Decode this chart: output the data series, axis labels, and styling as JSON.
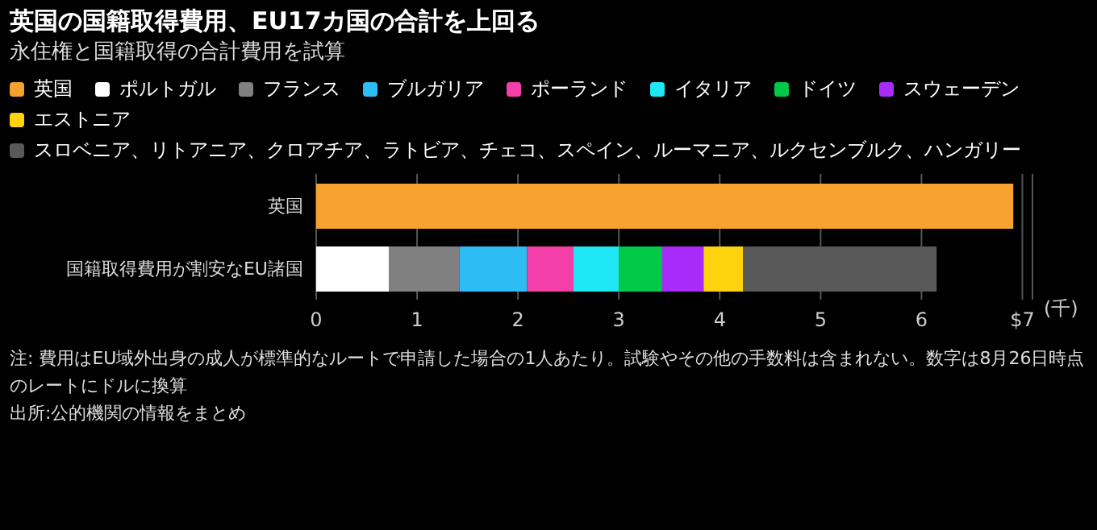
{
  "chart_data": {
    "type": "bar",
    "orientation": "horizontal",
    "stacked": true,
    "title": "英国の国籍取得費用、EU17カ国の合計を上回る",
    "subtitle": "永住権と国籍取得の合計費用を試算",
    "xlabel": "(千)",
    "categories": [
      "英国",
      "国籍取得費用が割安なEU諸国"
    ],
    "series": [
      {
        "name": "英国",
        "color": "#f7a12f",
        "values": [
          6.91,
          null
        ]
      },
      {
        "name": "ポルトガル",
        "color": "#ffffff",
        "values": [
          null,
          0.72
        ]
      },
      {
        "name": "フランス",
        "color": "#808080",
        "values": [
          null,
          0.7
        ]
      },
      {
        "name": "ブルガリア",
        "color": "#2ebcf5",
        "values": [
          null,
          0.67
        ]
      },
      {
        "name": "ポーランド",
        "color": "#f43fa8",
        "values": [
          null,
          0.46
        ]
      },
      {
        "name": "イタリア",
        "color": "#1ee8f5",
        "values": [
          null,
          0.45
        ]
      },
      {
        "name": "ドイツ",
        "color": "#00c948",
        "values": [
          null,
          0.43
        ]
      },
      {
        "name": "スウェーデン",
        "color": "#a92bfa",
        "values": [
          null,
          0.41
        ]
      },
      {
        "name": "エストニア",
        "color": "#fdd20f",
        "values": [
          null,
          0.39
        ]
      },
      {
        "name": "スロベニア、リトアニア、クロアチア、ラトビア、チェコ、スペイン、ルーマニア、ルクセンブルク、ハンガリー",
        "color": "#595959",
        "values": [
          null,
          1.92
        ]
      }
    ],
    "xlim": [
      0,
      7.1
    ],
    "xticks": [
      0,
      1,
      2,
      3,
      4,
      5,
      6,
      {
        "value": 7,
        "label": "$7"
      }
    ],
    "grid": "x",
    "legend": "top",
    "annotations": [
      "注: 費用はEU域外出身の成人が標準的なルートで申請した場合の1人あたり。試験やその他の手数料は含まれない。数字は8月26日時点のレートにドルに換算",
      "出所:公的機関の情報をまとめ"
    ]
  }
}
